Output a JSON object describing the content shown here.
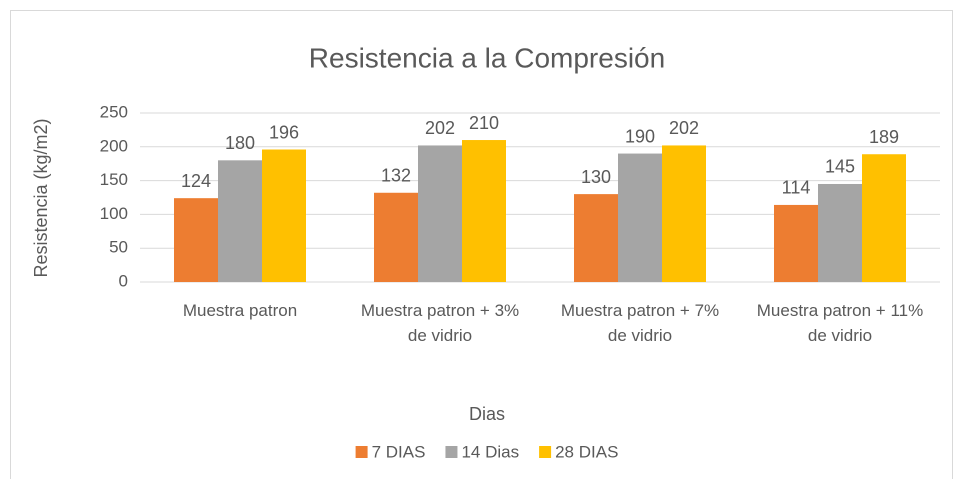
{
  "chart_data": {
    "type": "bar",
    "title": "Resistencia a la Compresión",
    "y_label": "Resistencia (kg/m2)",
    "legend_title": "Dias",
    "categories": [
      "Muestra patron",
      "Muestra patron + 3% de vidrio",
      "Muestra patron + 7% de vidrio",
      "Muestra patron + 11% de vidrio"
    ],
    "series": [
      {
        "name": "7 DIAS",
        "color": "#ed7d31",
        "values": [
          124,
          132,
          130,
          114
        ]
      },
      {
        "name": "14 Dias",
        "color": "#a5a5a5",
        "values": [
          180,
          202,
          190,
          145
        ]
      },
      {
        "name": "28 DIAS",
        "color": "#ffc000",
        "values": [
          196,
          210,
          202,
          189
        ]
      }
    ],
    "ylim": [
      0,
      250
    ],
    "yticks": [
      0,
      50,
      100,
      150,
      200,
      250
    ],
    "grid": true,
    "legend": "bottom"
  }
}
